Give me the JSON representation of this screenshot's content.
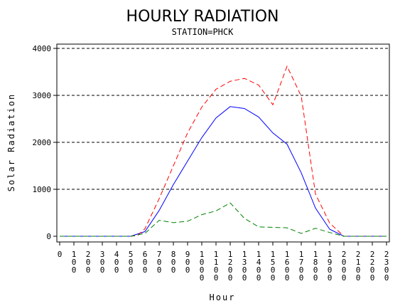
{
  "chart_data": {
    "type": "line",
    "title": "HOURLY RADIATION",
    "subtitle": "STATION=PHCK",
    "xlabel": "Hour",
    "ylabel": "Solar Radiation",
    "xlim": [
      0,
      2300
    ],
    "ylim": [
      0,
      4000
    ],
    "yticks": [
      0,
      1000,
      2000,
      3000,
      4000
    ],
    "xticks": [
      0,
      100,
      200,
      300,
      400,
      500,
      600,
      700,
      800,
      900,
      1000,
      1100,
      1200,
      1300,
      1400,
      1500,
      1600,
      1700,
      1800,
      1900,
      2000,
      2100,
      2200,
      2300
    ],
    "grid": "horizontal dashed",
    "legend": "none",
    "series": [
      {
        "color": "#0000ff",
        "style": "solid",
        "x": [
          0,
          100,
          200,
          300,
          400,
          500,
          600,
          700,
          800,
          900,
          1000,
          1100,
          1200,
          1300,
          1400,
          1500,
          1600,
          1700,
          1800,
          1900,
          2000,
          2100,
          2200,
          2300
        ],
        "values": [
          0,
          0,
          0,
          0,
          0,
          0,
          100,
          550,
          1100,
          1600,
          2100,
          2520,
          2760,
          2720,
          2540,
          2200,
          1960,
          1350,
          600,
          150,
          0,
          0,
          0,
          0
        ]
      },
      {
        "color": "#ff0000",
        "style": "dashed",
        "x": [
          0,
          100,
          200,
          300,
          400,
          500,
          550,
          600,
          700,
          800,
          900,
          1000,
          1100,
          1200,
          1300,
          1400,
          1500,
          1600,
          1700,
          1800,
          1900,
          2000,
          2100,
          2200,
          2300
        ],
        "values": [
          0,
          0,
          0,
          0,
          0,
          0,
          20,
          160,
          800,
          1500,
          2200,
          2750,
          3130,
          3300,
          3360,
          3220,
          2800,
          3620,
          2980,
          900,
          280,
          0,
          0,
          0,
          0
        ]
      },
      {
        "color": "#008000",
        "style": "dashed",
        "x": [
          0,
          100,
          200,
          300,
          400,
          500,
          600,
          700,
          800,
          900,
          1000,
          1100,
          1200,
          1300,
          1400,
          1500,
          1600,
          1700,
          1800,
          1900,
          2000,
          2100,
          2200,
          2300
        ],
        "values": [
          0,
          0,
          0,
          0,
          0,
          0,
          60,
          340,
          290,
          320,
          460,
          540,
          710,
          380,
          200,
          190,
          180,
          60,
          170,
          80,
          0,
          0,
          0,
          0
        ]
      }
    ]
  }
}
